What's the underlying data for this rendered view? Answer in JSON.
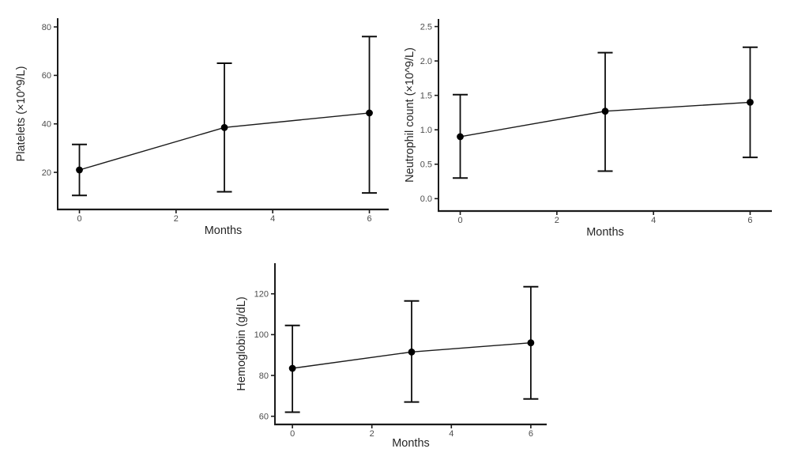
{
  "figure": {
    "background": "#ffffff",
    "description": "Three point-and-error-bar plots of blood counts over months"
  },
  "colors": {
    "line": "#1a1a1a",
    "point": "#000000",
    "error_bar": "#0d0d0d",
    "axis_line": "#1a1a1a",
    "tick_label": "#4d4d4d",
    "axis_title": "#262626",
    "background": "#ffffff"
  },
  "chart_data": [
    {
      "id": "platelets",
      "type": "line",
      "title": "",
      "xlabel": "Months",
      "ylabel": "Platelets (×10^9/L)",
      "x": [
        0,
        3,
        6
      ],
      "series": [
        {
          "name": "Platelets mean with error bars",
          "values": [
            21,
            38.5,
            44.5
          ],
          "err_low": [
            10.5,
            12,
            11.5
          ],
          "err_high": [
            31.5,
            65,
            76
          ]
        }
      ],
      "xticks": [
        "0",
        "2",
        "4",
        "6"
      ],
      "xtick_values": [
        0,
        2,
        4,
        6
      ],
      "yticks": [
        "20",
        "40",
        "60",
        "80"
      ],
      "ytick_values": [
        20,
        40,
        60,
        80
      ],
      "xlim": [
        -0.45,
        6.4
      ],
      "ylim": [
        4.7,
        83.6
      ],
      "grid": false,
      "legend": "none",
      "marker": "filled-circle",
      "error_bars": true
    },
    {
      "id": "neutrophil-count",
      "type": "line",
      "title": "",
      "xlabel": "Months",
      "ylabel": "Neutrophil count (×10^9/L)",
      "x": [
        0,
        3,
        6
      ],
      "series": [
        {
          "name": "Neutrophil count mean with error bars",
          "values": [
            0.9,
            1.27,
            1.4
          ],
          "err_low": [
            0.3,
            0.4,
            0.6
          ],
          "err_high": [
            1.51,
            2.12,
            2.2
          ]
        }
      ],
      "xticks": [
        "0",
        "2",
        "4",
        "6"
      ],
      "xtick_values": [
        0,
        2,
        4,
        6
      ],
      "yticks": [
        "0.0",
        "0.5",
        "1.0",
        "1.5",
        "2.0",
        "2.5"
      ],
      "ytick_values": [
        0,
        0.5,
        1,
        1.5,
        2,
        2.5
      ],
      "xlim": [
        -0.45,
        6.45
      ],
      "ylim": [
        -0.18,
        2.61
      ],
      "grid": false,
      "legend": "none",
      "marker": "filled-circle",
      "error_bars": true
    },
    {
      "id": "hemoglobin",
      "type": "line",
      "title": "",
      "xlabel": "Months",
      "ylabel": "Hemoglobin (g/dL)",
      "x": [
        0,
        3,
        6
      ],
      "series": [
        {
          "name": "Hemoglobin mean with error bars",
          "values": [
            83.5,
            91.5,
            96
          ],
          "err_low": [
            62,
            67,
            68.5
          ],
          "err_high": [
            104.5,
            116.5,
            123.5
          ]
        }
      ],
      "xticks": [
        "0",
        "2",
        "4",
        "6"
      ],
      "xtick_values": [
        0,
        2,
        4,
        6
      ],
      "yticks": [
        "60",
        "80",
        "100",
        "120"
      ],
      "ytick_values": [
        60,
        80,
        100,
        120
      ],
      "xlim": [
        -0.44,
        6.4
      ],
      "ylim": [
        56,
        135
      ],
      "grid": false,
      "legend": "none",
      "marker": "filled-circle",
      "error_bars": true
    }
  ]
}
